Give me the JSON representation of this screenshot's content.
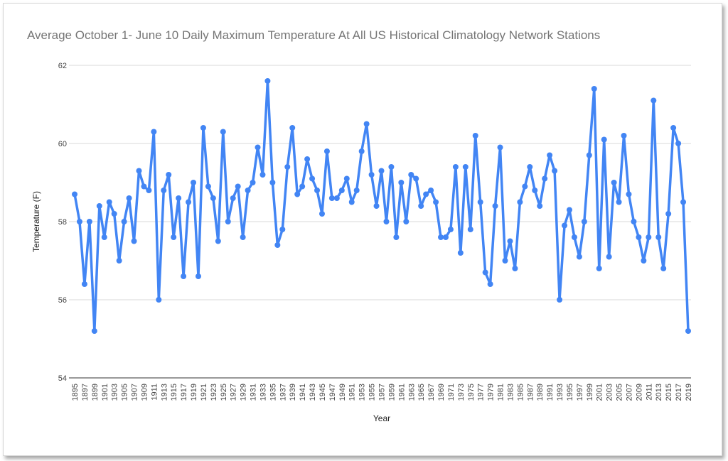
{
  "chart_data": {
    "type": "line",
    "title": "Average October 1- June 10 Daily Maximum Temperature At All US Historical Climatology Network Stations",
    "xlabel": "Year",
    "ylabel": "Temperature (F)",
    "ylim": [
      54,
      62
    ],
    "yticks": [
      "54",
      "56",
      "58",
      "60",
      "62"
    ],
    "xtick_labels": [
      "1895",
      "1897",
      "1899",
      "1901",
      "1903",
      "1905",
      "1907",
      "1909",
      "1911",
      "1913",
      "1915",
      "1917",
      "1919",
      "1921",
      "1923",
      "1925",
      "1927",
      "1929",
      "1931",
      "1933",
      "1935",
      "1937",
      "1939",
      "1941",
      "1943",
      "1945",
      "1947",
      "1949",
      "1951",
      "1953",
      "1955",
      "1957",
      "1959",
      "1961",
      "1963",
      "1965",
      "1967",
      "1969",
      "1971",
      "1973",
      "1975",
      "1977",
      "1979",
      "1981",
      "1983",
      "1985",
      "1987",
      "1989",
      "1991",
      "1993",
      "1995",
      "1997",
      "1999",
      "2001",
      "2003",
      "2005",
      "2007",
      "2009",
      "2011",
      "2013",
      "2015",
      "2017",
      "2019"
    ],
    "grid": true,
    "legend": "none",
    "color": "#4285f4",
    "series": [
      {
        "x_start": 1895,
        "values": [
          58.7,
          58.0,
          56.4,
          58.0,
          55.2,
          58.4,
          57.6,
          58.5,
          58.2,
          57.0,
          58.0,
          58.6,
          57.5,
          59.3,
          58.9,
          58.8,
          60.3,
          56.0,
          58.8,
          59.2,
          57.6,
          58.6,
          56.6,
          58.5,
          59.0,
          56.6,
          60.4,
          58.9,
          58.6,
          57.5,
          60.3,
          58.0,
          58.6,
          58.9,
          57.6,
          58.8,
          59.0,
          59.9,
          59.2,
          61.6,
          59.0,
          57.4,
          57.8,
          59.4,
          60.4,
          58.7,
          58.9,
          59.6,
          59.1,
          58.8,
          58.2,
          59.8,
          58.6,
          58.6,
          58.8,
          59.1,
          58.5,
          58.8,
          59.8,
          60.5,
          59.2,
          58.4,
          59.3,
          58.0,
          59.4,
          57.6,
          59.0,
          58.0,
          59.2,
          59.1,
          58.4,
          58.7,
          58.8,
          58.5,
          57.6,
          57.6,
          57.8,
          59.4,
          57.2,
          59.4,
          57.8,
          60.2,
          58.5,
          56.7,
          56.4,
          58.4,
          59.9,
          57.0,
          57.5,
          56.8,
          58.5,
          58.9,
          59.4,
          58.8,
          58.4,
          59.1,
          59.7,
          59.3,
          56.0,
          57.9,
          58.3,
          57.6,
          57.1,
          58.0,
          59.7,
          61.4,
          56.8,
          60.1,
          57.1,
          59.0,
          58.5,
          60.2,
          58.7,
          58.0,
          57.6,
          57.0,
          57.6,
          61.1,
          57.6,
          56.8,
          58.2,
          60.4,
          60.0,
          58.5,
          55.2
        ]
      }
    ]
  }
}
